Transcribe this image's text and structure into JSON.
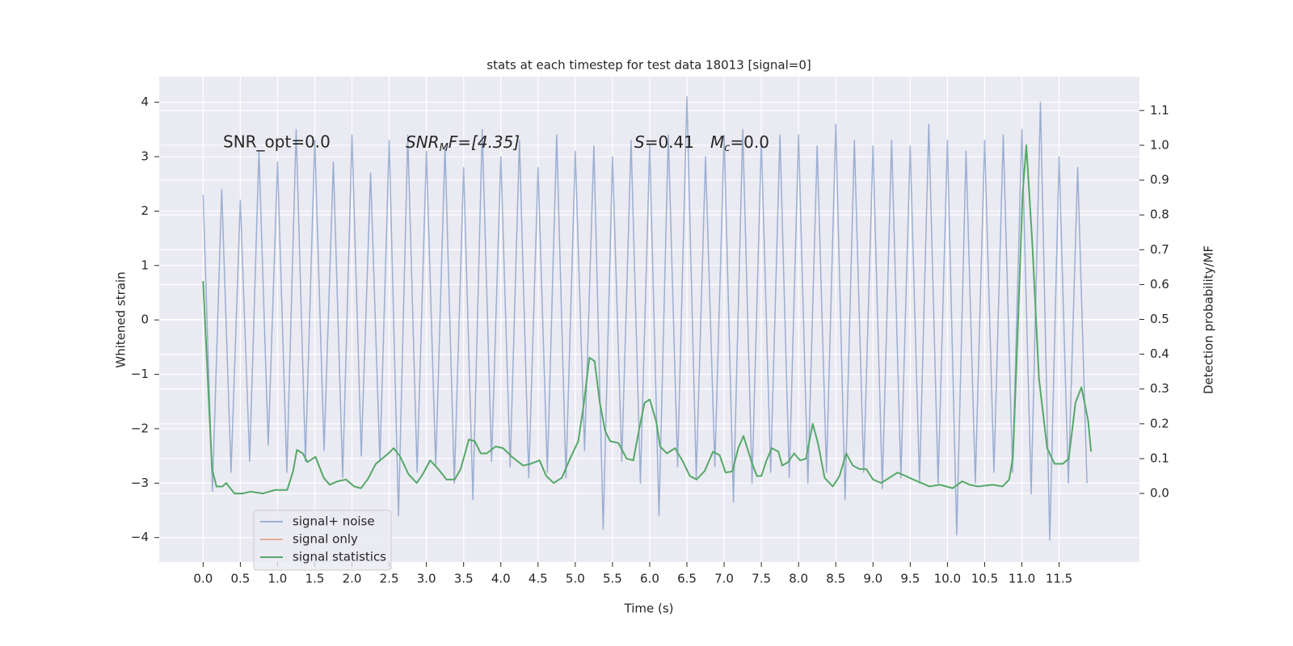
{
  "chart_data": {
    "type": "line",
    "title": "stats at each timestep for test data 18013 [signal=0]",
    "xlabel": "Time (s)",
    "ylabel": "Whitened strain",
    "y2label": "Detection probability/MF",
    "annotations": [
      [
        "SNR_opt=0.0"
      ],
      [
        "SNR",
        "M",
        "F=[4.35]"
      ],
      [
        "S",
        "=0.41"
      ],
      [
        "M",
        "c",
        "=0.0"
      ]
    ],
    "xlim": [
      -0.59,
      12.58
    ],
    "ylim": [
      -4.45,
      4.47
    ],
    "y2lim": [
      -0.197,
      1.197
    ],
    "xticks": [
      {
        "value": 0,
        "label": "0.0"
      },
      {
        "value": 0.5,
        "label": "0.5"
      },
      {
        "value": 1,
        "label": "1.0"
      },
      {
        "value": 1.5,
        "label": "1.5"
      },
      {
        "value": 2,
        "label": "2.0"
      },
      {
        "value": 2.5,
        "label": "2.5"
      },
      {
        "value": 3,
        "label": "3.0"
      },
      {
        "value": 3.5,
        "label": "3.5"
      },
      {
        "value": 4,
        "label": "4.0"
      },
      {
        "value": 4.5,
        "label": "4.5"
      },
      {
        "value": 5,
        "label": "5.0"
      },
      {
        "value": 5.5,
        "label": "5.5"
      },
      {
        "value": 6,
        "label": "6.0"
      },
      {
        "value": 6.5,
        "label": "6.5"
      },
      {
        "value": 7,
        "label": "7.0"
      },
      {
        "value": 7.5,
        "label": "7.5"
      },
      {
        "value": 8,
        "label": "8.0"
      },
      {
        "value": 8.5,
        "label": "8.5"
      },
      {
        "value": 9,
        "label": "9.0"
      },
      {
        "value": 9.5,
        "label": "9.5"
      },
      {
        "value": 10,
        "label": "10.0"
      },
      {
        "value": 10.5,
        "label": "10.5"
      },
      {
        "value": 11,
        "label": "11.0"
      },
      {
        "value": 11.5,
        "label": "11.5"
      }
    ],
    "yticks": [
      {
        "value": -4,
        "label": "−4"
      },
      {
        "value": -3,
        "label": "−3"
      },
      {
        "value": -2,
        "label": "−2"
      },
      {
        "value": -1,
        "label": "−1"
      },
      0,
      1,
      2,
      3,
      4
    ],
    "y2ticks": [
      {
        "value": 0,
        "label": "0.0"
      },
      {
        "value": 0.1,
        "label": "0.1"
      },
      {
        "value": 0.2,
        "label": "0.2"
      },
      {
        "value": 0.3,
        "label": "0.3"
      },
      {
        "value": 0.4,
        "label": "0.4"
      },
      {
        "value": 0.5,
        "label": "0.5"
      },
      {
        "value": 0.6,
        "label": "0.6"
      },
      {
        "value": 0.7,
        "label": "0.7"
      },
      {
        "value": 0.8,
        "label": "0.8"
      },
      {
        "value": 0.9,
        "label": "0.9"
      },
      {
        "value": 1,
        "label": "1.0"
      },
      {
        "value": 1.1,
        "label": "1.1"
      }
    ],
    "grid": true,
    "legend": "lower left",
    "series": [
      {
        "name": "signal+ noise",
        "color": "#4c72b0",
        "x": [
          0,
          0.125,
          0.25,
          0.375,
          0.5,
          0.625,
          0.75,
          0.875,
          1,
          1.125,
          1.25,
          1.375,
          1.5,
          1.625,
          1.75,
          1.875,
          2,
          2.125,
          2.25,
          2.375,
          2.5,
          2.625,
          2.75,
          2.875,
          3,
          3.125,
          3.25,
          3.375,
          3.5,
          3.625,
          3.75,
          3.875,
          4,
          4.125,
          4.25,
          4.375,
          4.5,
          4.625,
          4.75,
          4.875,
          5,
          5.125,
          5.25,
          5.375,
          5.5,
          5.625,
          5.75,
          5.875,
          6,
          6.125,
          6.25,
          6.375,
          6.5,
          6.625,
          6.75,
          6.875,
          7,
          7.125,
          7.25,
          7.375,
          7.5,
          7.625,
          7.75,
          7.875,
          8,
          8.125,
          8.25,
          8.375,
          8.5,
          8.625,
          8.75,
          8.875,
          9,
          9.125,
          9.25,
          9.375,
          9.5,
          9.625,
          9.75,
          9.875,
          10,
          10.125,
          10.25,
          10.375,
          10.5,
          10.625,
          10.75,
          10.875,
          11,
          11.125,
          11.25,
          11.375,
          11.5,
          11.625,
          11.75,
          11.875
        ],
        "values": [
          2.3,
          -3.15,
          2.4,
          -2.8,
          2.2,
          -2.6,
          3.1,
          -2.3,
          2.9,
          -2.8,
          3.5,
          -2.6,
          3.3,
          -2.4,
          2.9,
          -2.9,
          3.4,
          -2.5,
          2.7,
          -2.6,
          3.3,
          -3.6,
          3.4,
          -2.8,
          3.1,
          -2.7,
          3.2,
          -3.0,
          2.8,
          -3.3,
          3.5,
          -2.6,
          3.0,
          -2.7,
          3.3,
          -2.9,
          2.8,
          -2.8,
          3.4,
          -2.9,
          3.1,
          -2.4,
          3.2,
          -3.85,
          3.0,
          -2.6,
          3.3,
          -3.0,
          3.2,
          -3.6,
          3.4,
          -2.7,
          4.1,
          -2.9,
          3.0,
          -2.7,
          3.4,
          -3.35,
          3.5,
          -3.0,
          3.3,
          -2.8,
          3.4,
          -2.9,
          3.4,
          -3.0,
          3.2,
          -2.8,
          3.6,
          -3.3,
          3.3,
          -2.8,
          3.2,
          -3.1,
          3.3,
          -2.9,
          3.2,
          -3.0,
          3.6,
          -3.0,
          3.3,
          -3.95,
          3.1,
          -3.0,
          3.3,
          -2.8,
          3.4,
          -2.8,
          3.5,
          -3.2,
          4.0,
          -4.05,
          3.0,
          -3.0,
          2.8,
          -3.0
        ]
      },
      {
        "name": "signal only",
        "color": "#dd8452"
      },
      {
        "name": "signal statistics",
        "color": "#55a868",
        "axis": "y2",
        "x": [
          0,
          0.12,
          0.18,
          0.26,
          0.31,
          0.42,
          0.53,
          0.64,
          0.8,
          0.97,
          1.13,
          1.21,
          1.26,
          1.34,
          1.4,
          1.51,
          1.62,
          1.7,
          1.81,
          1.92,
          2.03,
          2.12,
          2.21,
          2.32,
          2.49,
          2.56,
          2.65,
          2.76,
          2.87,
          2.95,
          3.05,
          3.16,
          3.27,
          3.38,
          3.46,
          3.57,
          3.65,
          3.73,
          3.81,
          3.93,
          4.03,
          4.15,
          4.3,
          4.4,
          4.52,
          4.61,
          4.71,
          4.82,
          4.93,
          5.04,
          5.11,
          5.19,
          5.26,
          5.33,
          5.4,
          5.47,
          5.58,
          5.69,
          5.78,
          5.85,
          5.93,
          6,
          6.09,
          6.14,
          6.23,
          6.34,
          6.45,
          6.54,
          6.63,
          6.74,
          6.85,
          6.94,
          7.02,
          7.11,
          7.19,
          7.26,
          7.37,
          7.44,
          7.5,
          7.57,
          7.64,
          7.73,
          7.78,
          7.86,
          7.94,
          8.02,
          8.1,
          8.19,
          8.26,
          8.35,
          8.46,
          8.55,
          8.64,
          8.73,
          8.82,
          8.91,
          9,
          9.11,
          9.22,
          9.33,
          9.44,
          9.54,
          9.65,
          9.76,
          9.9,
          10.07,
          10.2,
          10.3,
          10.41,
          10.61,
          10.74,
          10.83,
          10.88,
          10.94,
          11.01,
          11.06,
          11.14,
          11.23,
          11.34,
          11.44,
          11.55,
          11.63,
          11.72,
          11.8,
          11.89,
          11.93
        ],
        "values": [
          0.61,
          0.07,
          0.02,
          0.02,
          0.03,
          0,
          0,
          0.005,
          0,
          0.01,
          0.01,
          0.065,
          0.125,
          0.115,
          0.09,
          0.105,
          0.045,
          0.025,
          0.035,
          0.04,
          0.02,
          0.015,
          0.04,
          0.085,
          0.115,
          0.13,
          0.105,
          0.055,
          0.03,
          0.055,
          0.095,
          0.07,
          0.04,
          0.04,
          0.07,
          0.155,
          0.15,
          0.115,
          0.115,
          0.135,
          0.13,
          0.105,
          0.08,
          0.085,
          0.095,
          0.05,
          0.03,
          0.045,
          0.1,
          0.15,
          0.25,
          0.39,
          0.38,
          0.26,
          0.18,
          0.15,
          0.145,
          0.1,
          0.095,
          0.175,
          0.26,
          0.27,
          0.205,
          0.135,
          0.115,
          0.13,
          0.09,
          0.05,
          0.04,
          0.065,
          0.12,
          0.11,
          0.06,
          0.063,
          0.13,
          0.165,
          0.09,
          0.05,
          0.05,
          0.095,
          0.13,
          0.12,
          0.08,
          0.09,
          0.115,
          0.095,
          0.1,
          0.2,
          0.145,
          0.045,
          0.02,
          0.05,
          0.115,
          0.08,
          0.07,
          0.07,
          0.04,
          0.03,
          0.045,
          0.06,
          0.05,
          0.04,
          0.03,
          0.02,
          0.025,
          0.015,
          0.035,
          0.025,
          0.02,
          0.025,
          0.02,
          0.04,
          0.105,
          0.44,
          0.86,
          1.0,
          0.72,
          0.33,
          0.13,
          0.085,
          0.085,
          0.1,
          0.26,
          0.305,
          0.21,
          0.12
        ]
      }
    ]
  }
}
